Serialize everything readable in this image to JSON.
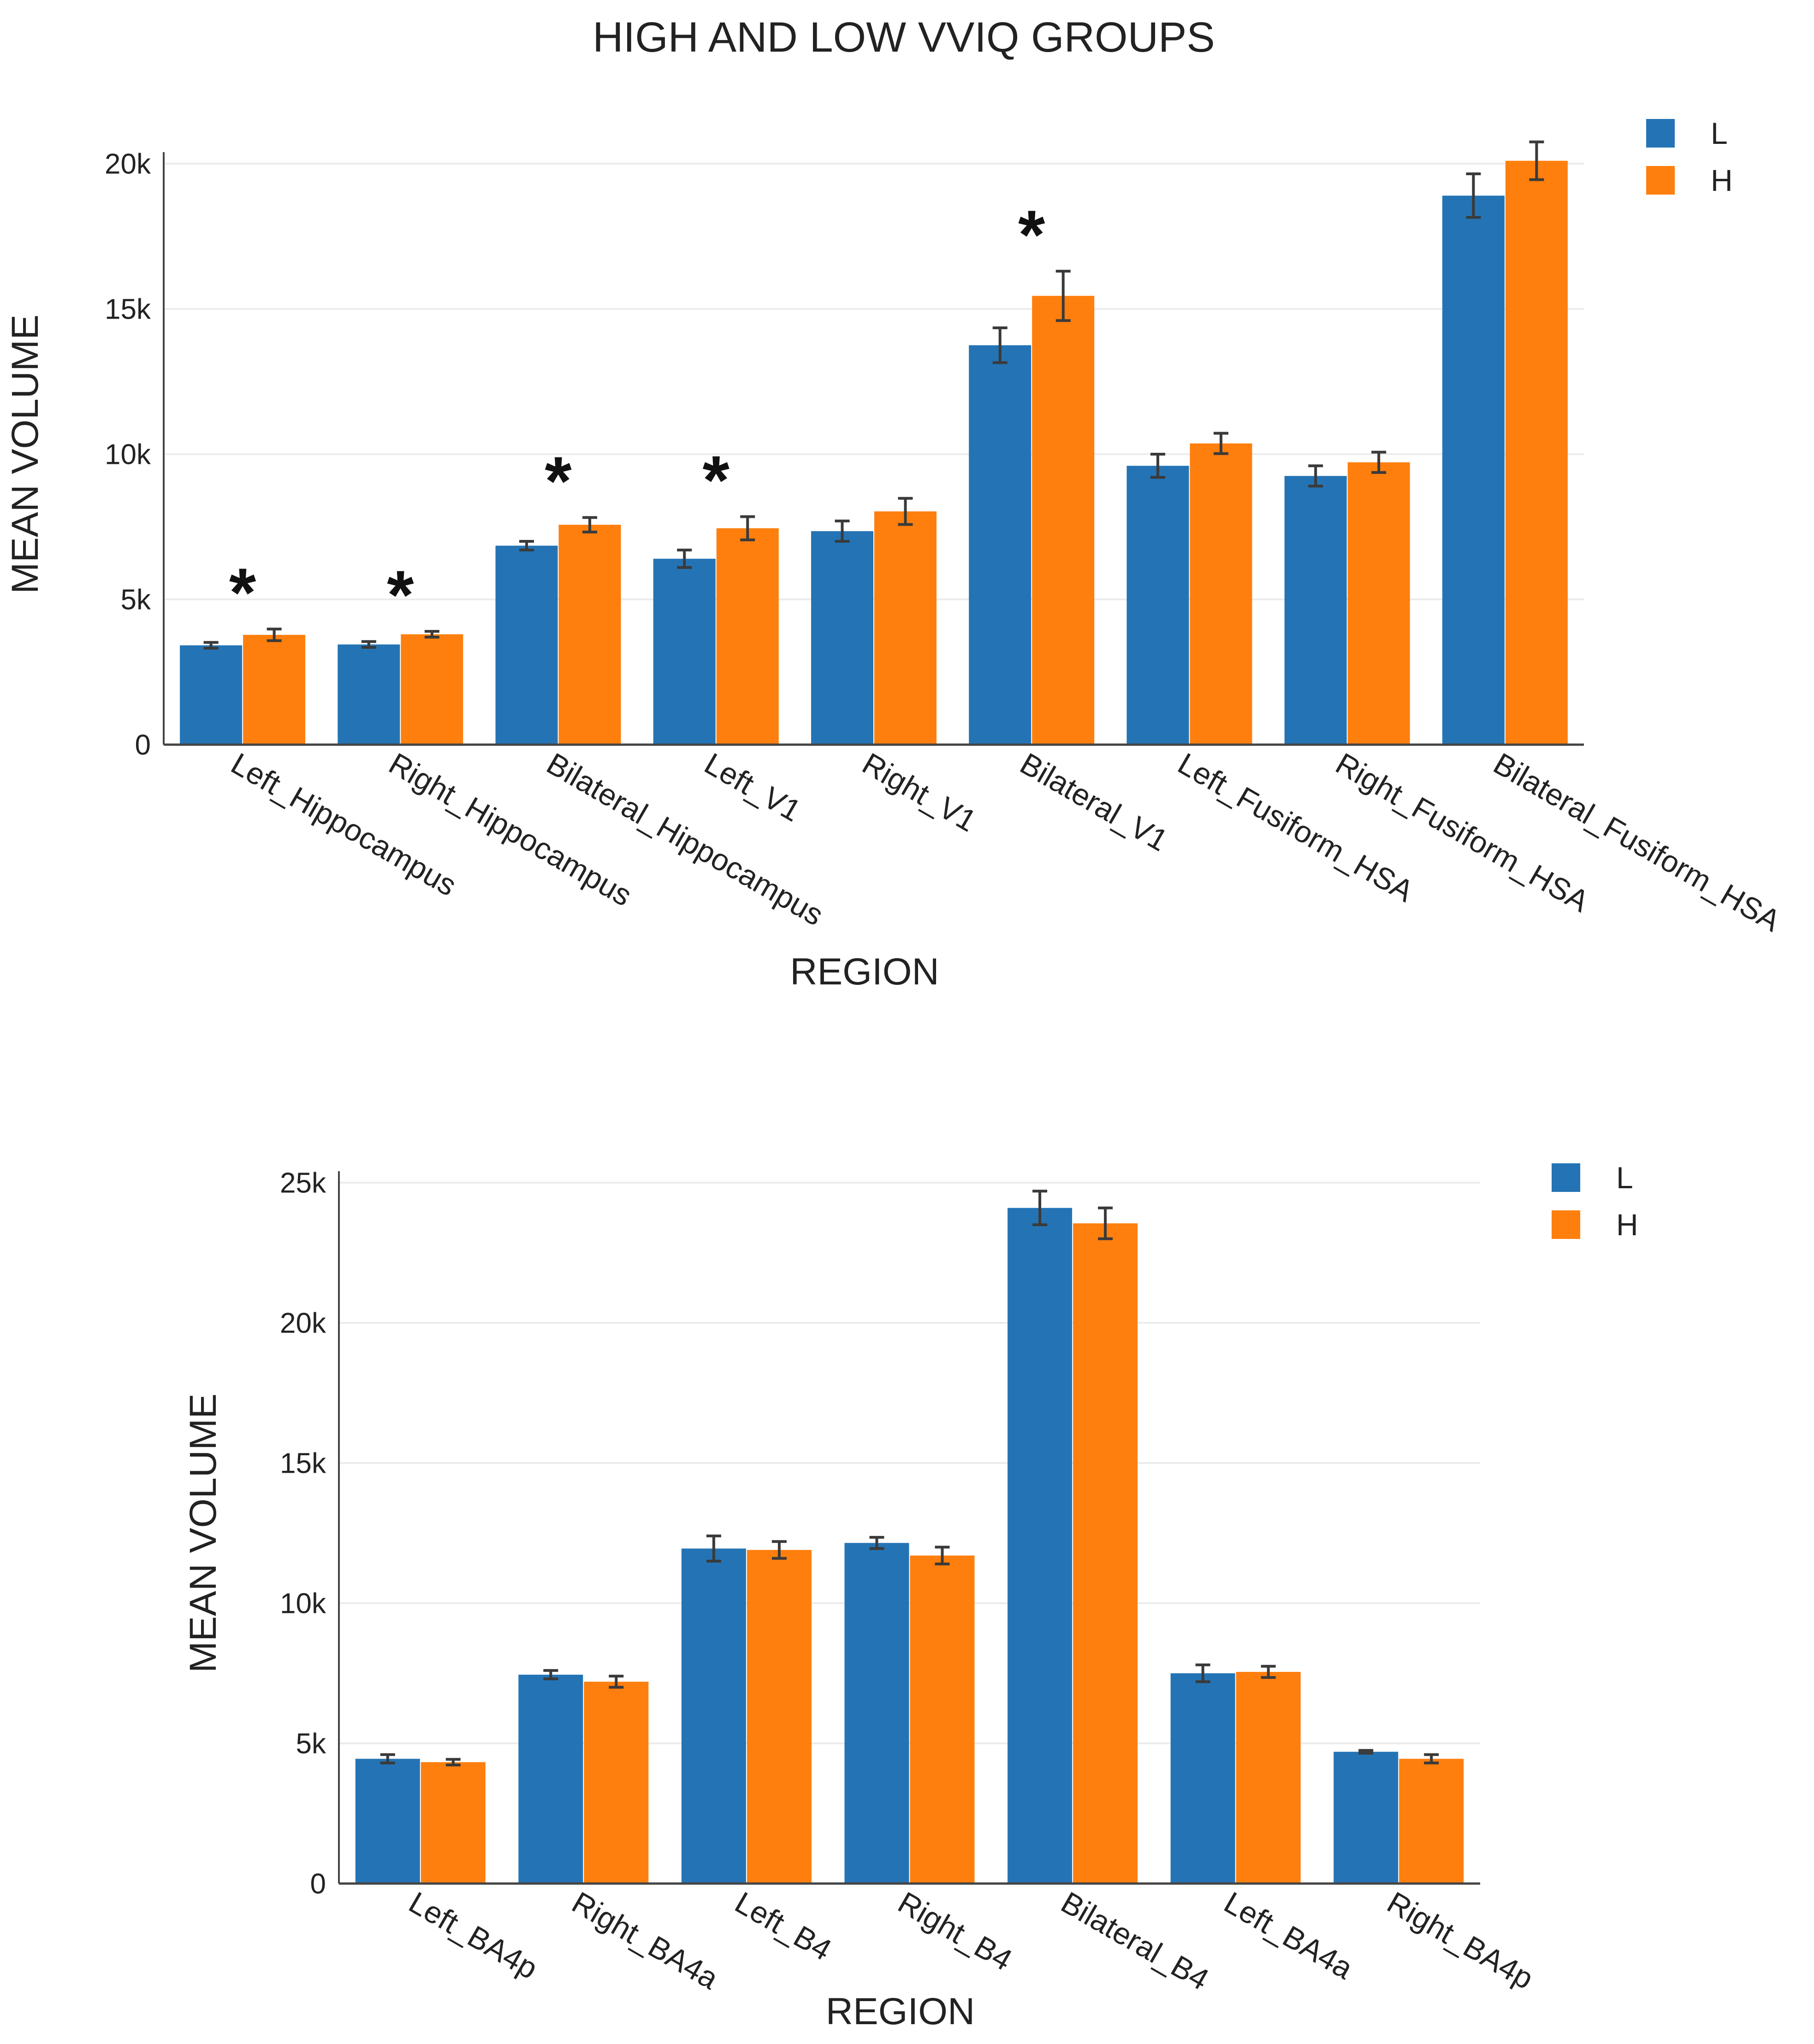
{
  "figure": {
    "title": "HIGH AND LOW VVIQ GROUPS"
  },
  "colors": {
    "L": "#2474b5",
    "H": "#fe7f0e",
    "grid": "#ececec",
    "axis": "#444444",
    "error": "#3a3a3a"
  },
  "chart_data": [
    {
      "type": "bar",
      "title": "HIGH AND LOW VVIQ GROUPS",
      "xlabel": "REGION",
      "ylabel": "MEAN VOLUME",
      "ylim": [
        0,
        20000
      ],
      "yticks": [
        {
          "value": 0,
          "label": "0"
        },
        {
          "value": 5000,
          "label": "5k"
        },
        {
          "value": 10000,
          "label": "10k"
        },
        {
          "value": 15000,
          "label": "15k"
        },
        {
          "value": 20000,
          "label": "20k"
        }
      ],
      "grid": true,
      "legend": {
        "position": "top-right",
        "entries": [
          "L",
          "H"
        ]
      },
      "categories": [
        "Left_Hippocampus",
        "Right_Hippocampus",
        "Bilateral_Hippocampus",
        "Left_V1",
        "Right_V1",
        "Bilateral_V1",
        "Left_Fusiform_HSA",
        "Right_Fusiform_HSA",
        "Bilateral_Fusiform_HSA"
      ],
      "series": [
        {
          "name": "L",
          "values": [
            3420,
            3450,
            6850,
            6400,
            7350,
            13750,
            9600,
            9250,
            18900
          ],
          "errors": [
            100,
            100,
            150,
            300,
            350,
            600,
            400,
            350,
            750
          ]
        },
        {
          "name": "H",
          "values": [
            3780,
            3800,
            7570,
            7450,
            8030,
            15450,
            10370,
            9720,
            20100
          ],
          "errors": [
            200,
            100,
            250,
            400,
            450,
            850,
            350,
            350,
            650
          ]
        }
      ],
      "annotations": [
        {
          "category": "Left_Hippocampus",
          "text": "*"
        },
        {
          "category": "Right_Hippocampus",
          "text": "*"
        },
        {
          "category": "Bilateral_Hippocampus",
          "text": "*"
        },
        {
          "category": "Left_V1",
          "text": "*"
        },
        {
          "category": "Bilateral_V1",
          "text": "*"
        }
      ]
    },
    {
      "type": "bar",
      "title": "",
      "xlabel": "REGION",
      "ylabel": "MEAN VOLUME",
      "ylim": [
        0,
        25000
      ],
      "yticks": [
        {
          "value": 0,
          "label": "0"
        },
        {
          "value": 5000,
          "label": "5k"
        },
        {
          "value": 10000,
          "label": "10k"
        },
        {
          "value": 15000,
          "label": "15k"
        },
        {
          "value": 20000,
          "label": "20k"
        },
        {
          "value": 25000,
          "label": "25k"
        }
      ],
      "grid": true,
      "legend": {
        "position": "top-right",
        "entries": [
          "L",
          "H"
        ]
      },
      "categories": [
        "Left_BA4p",
        "Right_BA4a",
        "Left_B4",
        "Right_B4",
        "Bilateral_B4",
        "Left_BA4a",
        "Right_BA4p"
      ],
      "series": [
        {
          "name": "L",
          "values": [
            4450,
            7450,
            11950,
            12150,
            24100,
            7500,
            4700
          ],
          "errors": [
            150,
            150,
            450,
            200,
            600,
            300,
            50
          ]
        },
        {
          "name": "H",
          "values": [
            4330,
            7200,
            11900,
            11700,
            23550,
            7550,
            4450
          ],
          "errors": [
            100,
            200,
            300,
            300,
            550,
            200,
            150
          ]
        }
      ],
      "annotations": []
    }
  ]
}
